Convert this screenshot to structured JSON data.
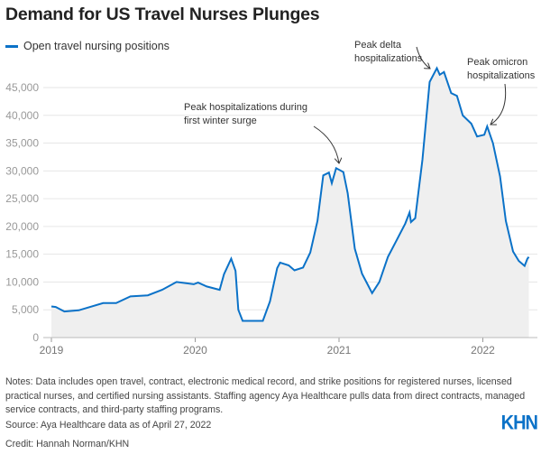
{
  "title": "Demand for US Travel Nurses Plunges",
  "notes": "Notes: Data includes open travel, contract, electronic medical record, and strike positions for registered nurses, licensed practical nurses, and certified nursing assistants. Staffing agency Aya Healthcare pulls data from direct contracts, managed service contracts, and third-party staffing programs.",
  "source": "Source: Aya Healthcare data as of April 27, 2022",
  "credit": "Credit: Hannah Norman/KHN",
  "logo": "KHN",
  "colors": {
    "line": "#0b72c8",
    "area": "#efefef",
    "grid": "#e6e6e6"
  },
  "chart_data": {
    "type": "area",
    "title": "Demand for US Travel Nurses Plunges",
    "xlabel": "",
    "ylabel": "",
    "legend": "top-left",
    "grid": true,
    "ylim": [
      0,
      45000
    ],
    "xlim": [
      2019,
      2022.32
    ],
    "x_ticks": [
      2019,
      2020,
      2021,
      2022
    ],
    "x_tick_labels": [
      "2019",
      "2020",
      "2021",
      "2022"
    ],
    "y_ticks": [
      0,
      5000,
      10000,
      15000,
      20000,
      25000,
      30000,
      35000,
      40000,
      45000
    ],
    "y_tick_labels": [
      "0",
      "5,000",
      "10,000",
      "15,000",
      "20,000",
      "25,000",
      "30,000",
      "35,000",
      "40,000",
      "45,000"
    ],
    "series": [
      {
        "name": "Open travel nursing positions",
        "x": [
          2019.0,
          2019.03,
          2019.09,
          2019.19,
          2019.24,
          2019.36,
          2019.45,
          2019.55,
          2019.67,
          2019.77,
          2019.87,
          2019.99,
          2020.02,
          2020.08,
          2020.17,
          2020.2,
          2020.25,
          2020.28,
          2020.3,
          2020.33,
          2020.47,
          2020.52,
          2020.57,
          2020.59,
          2020.65,
          2020.69,
          2020.75,
          2020.8,
          2020.85,
          2020.89,
          2020.93,
          2020.95,
          2020.98,
          2021.03,
          2021.06,
          2021.11,
          2021.16,
          2021.2,
          2021.23,
          2021.28,
          2021.34,
          2021.4,
          2021.46,
          2021.49,
          2021.5,
          2021.53,
          2021.58,
          2021.63,
          2021.68,
          2021.7,
          2021.73,
          2021.78,
          2021.82,
          2021.86,
          2021.92,
          2021.96,
          2022.01,
          2022.03,
          2022.07,
          2022.12,
          2022.16,
          2022.21,
          2022.25,
          2022.29,
          2022.31,
          2022.32
        ],
        "y": [
          5600,
          5500,
          4700,
          4900,
          5300,
          6200,
          6200,
          7400,
          7600,
          8600,
          10000,
          9600,
          9900,
          9200,
          8600,
          11400,
          14200,
          12000,
          5000,
          3000,
          3000,
          6500,
          12500,
          13500,
          13000,
          12100,
          12600,
          15300,
          21000,
          29200,
          29700,
          27800,
          30500,
          29800,
          26000,
          16000,
          11500,
          9500,
          8000,
          10000,
          14500,
          17500,
          20500,
          22500,
          20800,
          21500,
          32000,
          46000,
          48500,
          47300,
          47800,
          44000,
          43500,
          40000,
          38500,
          36200,
          36500,
          38000,
          35000,
          29000,
          21000,
          15500,
          13800,
          12900,
          14200,
          14500
        ]
      }
    ],
    "annotations": [
      {
        "lines": [
          "Peak hospitalizations during",
          "first winter surge"
        ]
      },
      {
        "lines": [
          "Peak delta",
          "hospitalizations"
        ]
      },
      {
        "lines": [
          "Peak omicron",
          "hospitalizations"
        ]
      }
    ]
  }
}
